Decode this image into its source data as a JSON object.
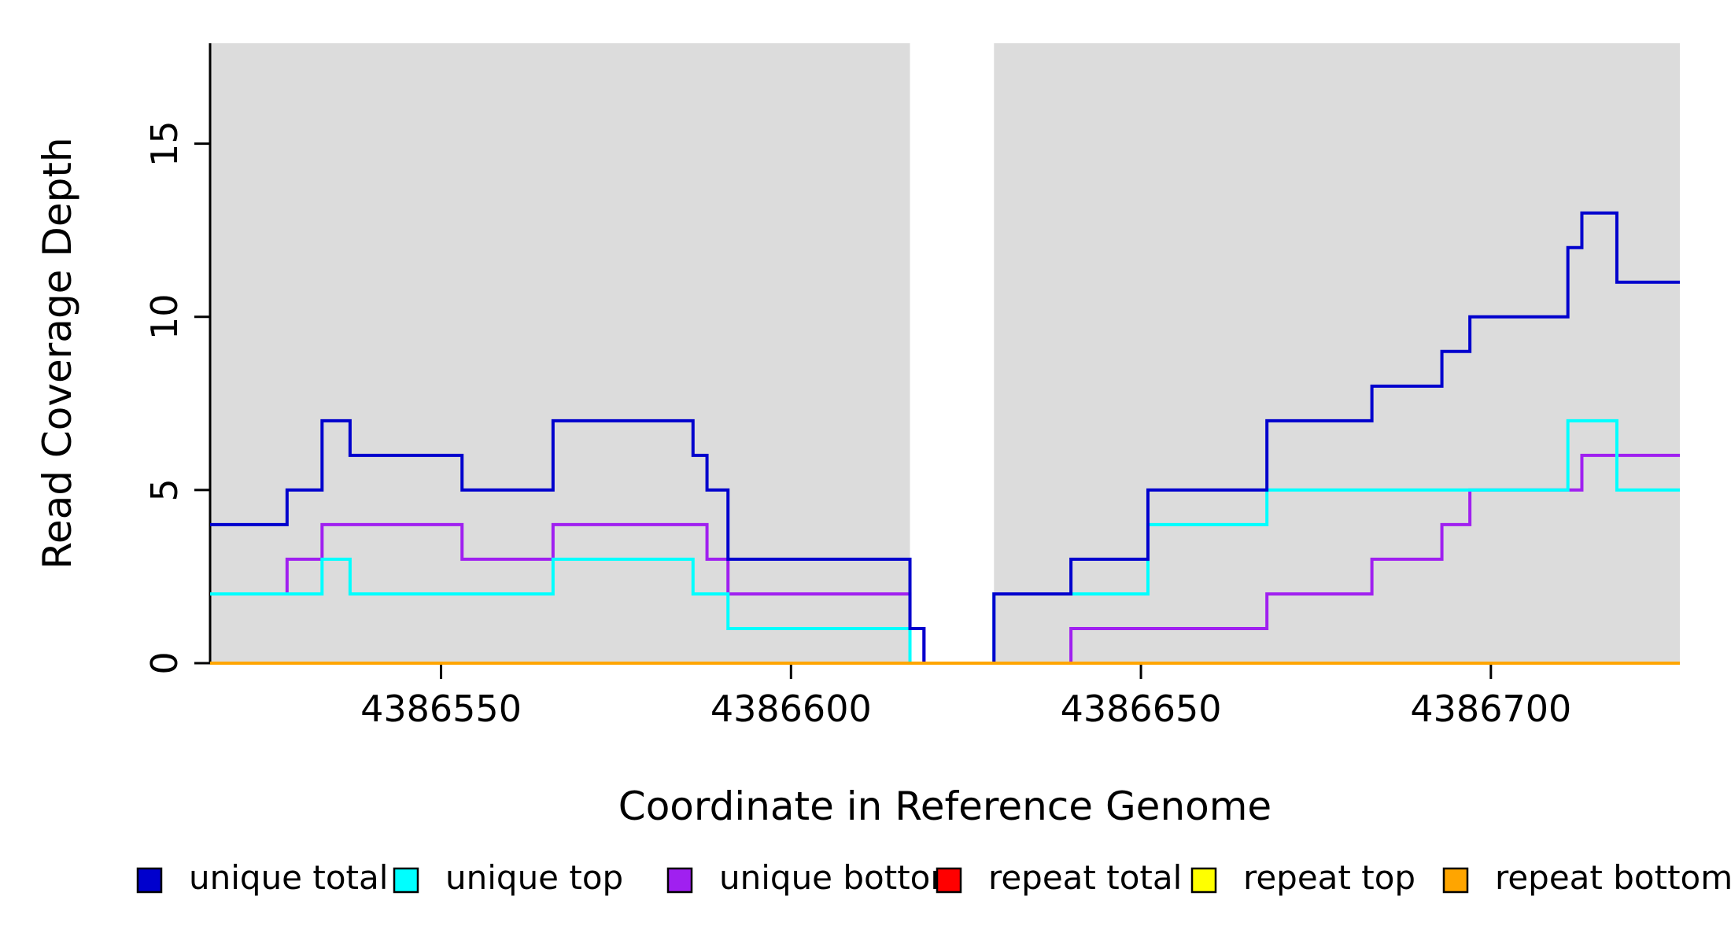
{
  "chart_data": {
    "type": "line",
    "subtype": "step",
    "title": "",
    "xlabel": "Coordinate in Reference Genome",
    "ylabel": "Read Coverage Depth",
    "xlim": [
      4386517,
      4386727
    ],
    "ylim": [
      0,
      17.9
    ],
    "xticks": [
      4386550,
      4386600,
      4386650,
      4386700
    ],
    "yticks": [
      0,
      5,
      10,
      15
    ],
    "grid": false,
    "legend_position": "bottom",
    "panel_shade_color": "#DCDCDC",
    "shaded_regions": [
      [
        4386517,
        4386617
      ],
      [
        4386629,
        4386727
      ]
    ],
    "gap_region": [
      4386617,
      4386629
    ],
    "series": [
      {
        "name": "unique total",
        "color": "#0000CD",
        "steps": [
          [
            4386517,
            4
          ],
          [
            4386528,
            5
          ],
          [
            4386533,
            7
          ],
          [
            4386537,
            6
          ],
          [
            4386553,
            5
          ],
          [
            4386566,
            7
          ],
          [
            4386586,
            6
          ],
          [
            4386588,
            5
          ],
          [
            4386591,
            3
          ],
          [
            4386617,
            1
          ],
          [
            4386619,
            0
          ],
          [
            4386629,
            2
          ],
          [
            4386640,
            3
          ],
          [
            4386651,
            5
          ],
          [
            4386668,
            7
          ],
          [
            4386683,
            8
          ],
          [
            4386693,
            9
          ],
          [
            4386697,
            10
          ],
          [
            4386711,
            12
          ],
          [
            4386713,
            13
          ],
          [
            4386718,
            11
          ]
        ]
      },
      {
        "name": "unique top",
        "color": "#00FFFF",
        "steps": [
          [
            4386517,
            2
          ],
          [
            4386533,
            3
          ],
          [
            4386537,
            2
          ],
          [
            4386566,
            3
          ],
          [
            4386586,
            2
          ],
          [
            4386591,
            1
          ],
          [
            4386617,
            0
          ],
          [
            4386629,
            2
          ],
          [
            4386651,
            4
          ],
          [
            4386668,
            5
          ],
          [
            4386711,
            7
          ],
          [
            4386718,
            5
          ]
        ]
      },
      {
        "name": "unique bottom",
        "color": "#A020F0",
        "steps": [
          [
            4386517,
            2
          ],
          [
            4386528,
            3
          ],
          [
            4386533,
            4
          ],
          [
            4386553,
            3
          ],
          [
            4386566,
            4
          ],
          [
            4386588,
            3
          ],
          [
            4386591,
            2
          ],
          [
            4386617,
            1
          ],
          [
            4386619,
            0
          ],
          [
            4386640,
            1
          ],
          [
            4386668,
            2
          ],
          [
            4386683,
            3
          ],
          [
            4386693,
            4
          ],
          [
            4386697,
            5
          ],
          [
            4386713,
            6
          ]
        ]
      },
      {
        "name": "repeat total",
        "color": "#FF0000",
        "steps": [
          [
            4386517,
            0
          ]
        ]
      },
      {
        "name": "repeat top",
        "color": "#FFFF00",
        "steps": [
          [
            4386517,
            0
          ]
        ]
      },
      {
        "name": "repeat bottom",
        "color": "#FFA500",
        "steps": [
          [
            4386517,
            0
          ]
        ]
      }
    ]
  }
}
